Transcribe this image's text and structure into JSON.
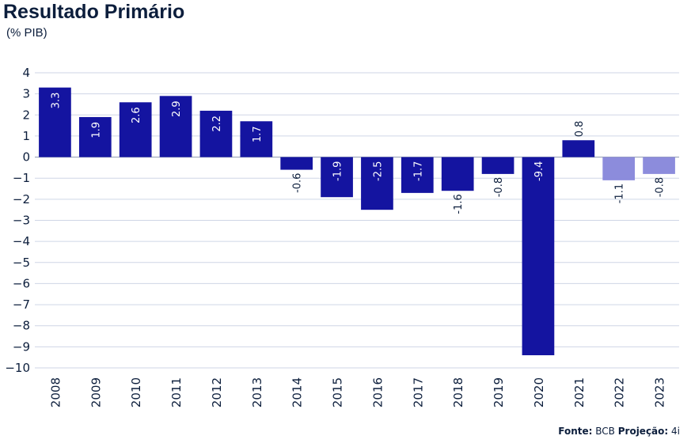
{
  "header": {
    "title": "Resultado Primário",
    "subtitle": "(% PIB)"
  },
  "footer": {
    "source_label": "Fonte:",
    "source_value": "BCB",
    "projection_label": "Projeção:",
    "projection_value": "4i"
  },
  "colors": {
    "actual": "#1414a0",
    "projection": "#8c8cdc",
    "grid": "#cfd6e6",
    "text": "#0c1e3c"
  },
  "chart_data": {
    "type": "bar",
    "title": "Resultado Primário",
    "subtitle": "(% PIB)",
    "xlabel": "",
    "ylabel": "",
    "ylim": [
      -10,
      4
    ],
    "yticks": [
      "4",
      "3",
      "2",
      "1",
      "0",
      "−1",
      "−2",
      "−3",
      "−4",
      "−5",
      "−6",
      "−7",
      "−8",
      "−9",
      "−10"
    ],
    "ytick_values": [
      4,
      3,
      2,
      1,
      0,
      -1,
      -2,
      -3,
      -4,
      -5,
      -6,
      -7,
      -8,
      -9,
      -10
    ],
    "grid": true,
    "categories": [
      "2008",
      "2009",
      "2010",
      "2011",
      "2012",
      "2013",
      "2014",
      "2015",
      "2016",
      "2017",
      "2018",
      "2019",
      "2020",
      "2021",
      "2022",
      "2023"
    ],
    "values": [
      3.3,
      1.9,
      2.6,
      2.9,
      2.2,
      1.7,
      -0.6,
      -1.9,
      -2.5,
      -1.7,
      -1.6,
      -0.8,
      -9.4,
      0.8,
      -1.1,
      -0.8
    ],
    "labels": [
      "3.3",
      "1.9",
      "2.6",
      "2.9",
      "2.2",
      "1.7",
      "-0.6",
      "-1.9",
      "-2.5",
      "-1.7",
      "-1.6",
      "-0.8",
      "-9.4",
      "0.8",
      "-1.1",
      "-0.8"
    ],
    "projection": [
      false,
      false,
      false,
      false,
      false,
      false,
      false,
      false,
      false,
      false,
      false,
      false,
      false,
      false,
      true,
      true
    ]
  }
}
